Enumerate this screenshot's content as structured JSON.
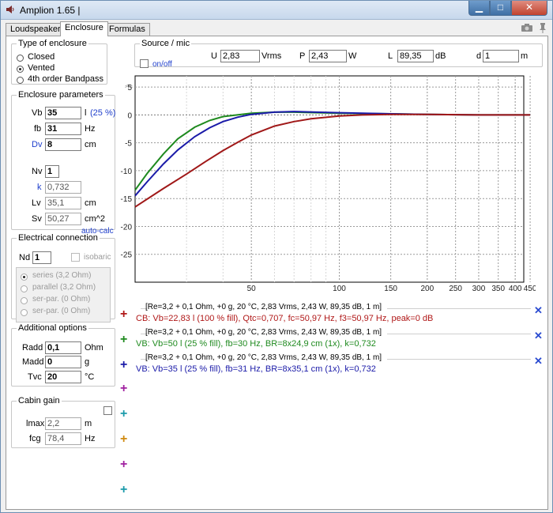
{
  "window": {
    "title": "Amplion 1.65 |",
    "minimize": "▁",
    "maximize": "□",
    "close": "✕"
  },
  "tabs": [
    {
      "label": "Loudspeaker"
    },
    {
      "label": "Enclosure"
    },
    {
      "label": "Formulas"
    }
  ],
  "enclosure_type": {
    "legend": "Type of enclosure",
    "options": [
      {
        "label": "Closed"
      },
      {
        "label": "Vented"
      },
      {
        "label": "4th order Bandpass"
      }
    ],
    "selected": "Vented"
  },
  "enclosure_params": {
    "legend": "Enclosure parameters",
    "vb": {
      "label": "Vb",
      "value": "35",
      "unit": "l",
      "note": "(25 %)"
    },
    "fb": {
      "label": "fb",
      "value": "31",
      "unit": "Hz"
    },
    "dv": {
      "label": "Dv",
      "value": "8",
      "unit": "cm"
    },
    "nv": {
      "label": "Nv",
      "value": "1"
    },
    "k": {
      "label": "k",
      "value": "0,732"
    },
    "lv": {
      "label": "Lv",
      "value": "35,1",
      "unit": "cm"
    },
    "sv": {
      "label": "Sv",
      "value": "50,27",
      "unit": "cm^2"
    },
    "auto_calc": "auto-calc"
  },
  "electrical": {
    "legend": "Electrical connection",
    "nd": {
      "label": "Nd",
      "value": "1"
    },
    "isobaric": "isobaric",
    "modes": [
      {
        "label": "series (3,2 Ohm)"
      },
      {
        "label": "parallel (3,2 Ohm)"
      },
      {
        "label": "ser-par. (0 Ohm)"
      },
      {
        "label": "ser-par. (0 Ohm)"
      }
    ],
    "selected": "series (3,2 Ohm)"
  },
  "additional": {
    "legend": "Additional options",
    "radd": {
      "label": "Radd",
      "value": "0,1",
      "unit": "Ohm"
    },
    "madd": {
      "label": "Madd",
      "value": "0",
      "unit": "g"
    },
    "tvc": {
      "label": "Tvc",
      "value": "20",
      "unit": "°C"
    }
  },
  "cabin": {
    "legend": "Cabin gain",
    "lmax": {
      "label": "lmax",
      "value": "2,2",
      "unit": "m"
    },
    "fcg": {
      "label": "fcg",
      "value": "78,4",
      "unit": "Hz"
    }
  },
  "source": {
    "legend": "Source / mic",
    "onoff": "on/off",
    "u": {
      "label": "U",
      "value": "2,83",
      "unit": "Vrms"
    },
    "p": {
      "label": "P",
      "value": "2,43",
      "unit": "W"
    },
    "l": {
      "label": "L",
      "value": "89,35",
      "unit": "dB"
    },
    "d": {
      "label": "d",
      "value": "1",
      "unit": "m"
    }
  },
  "chart_data": {
    "type": "line",
    "xscale": "log",
    "xlim": [
      20,
      500
    ],
    "ylim": [
      -30,
      7
    ],
    "x_ticks": [
      "50",
      "100",
      "150",
      "200",
      "250",
      "300",
      "350",
      "400",
      "450"
    ],
    "y_ticks": [
      "5",
      "0",
      "-5",
      "-10",
      "-15",
      "-20",
      "-25"
    ],
    "grid": true,
    "series": [
      {
        "color": "#1f8a1f",
        "x": [
          20,
          22,
          25,
          28,
          32,
          36,
          40,
          50,
          60,
          70,
          100,
          150,
          200,
          300,
          450
        ],
        "y": [
          -13.5,
          -10.5,
          -7.0,
          -4.3,
          -2.2,
          -1.0,
          -0.3,
          0.3,
          0.5,
          0.5,
          0.3,
          0.2,
          0.1,
          0.0,
          0.0
        ]
      },
      {
        "color": "#1a1aa8",
        "x": [
          20,
          22,
          25,
          28,
          32,
          36,
          40,
          45,
          50,
          60,
          70,
          100,
          150,
          200,
          300,
          450
        ],
        "y": [
          -14.5,
          -12.0,
          -8.8,
          -6.3,
          -3.9,
          -2.3,
          -1.2,
          -0.4,
          0.1,
          0.5,
          0.6,
          0.4,
          0.2,
          0.1,
          0.0,
          0.0
        ]
      },
      {
        "color": "#a01818",
        "x": [
          20,
          25,
          30,
          35,
          40,
          45,
          50,
          60,
          70,
          80,
          100,
          120,
          150,
          200,
          300,
          450
        ],
        "y": [
          -16.5,
          -13.2,
          -10.6,
          -8.3,
          -6.4,
          -4.9,
          -3.6,
          -2.0,
          -1.2,
          -0.7,
          -0.2,
          0.0,
          0.1,
          0.1,
          0.0,
          0.0
        ]
      }
    ]
  },
  "entries": [
    {
      "params": "[Re=3,2 + 0,1 Ohm, +0 g, 20 °C, 2,83 Vrms, 2,43 W, 89,35 dB, 1 m]",
      "desc": "CB: Vb=22,83 l (100 % fill), Qtc=0,707, fc=50,97 Hz, f3=50,97 Hz, peak=0 dB",
      "color": "#b01818"
    },
    {
      "params": "[Re=3,2 + 0,1 Ohm, +0 g, 20 °C, 2,83 Vrms, 2,43 W, 89,35 dB, 1 m]",
      "desc": "VB: Vb=50 l (25 % fill), fb=30 Hz, BR=8x24,9 cm (1x), k=0,732",
      "color": "#1f8a1f"
    },
    {
      "params": "[Re=3,2 + 0,1 Ohm, +0 g, 20 °C, 2,83 Vrms, 2,43 W, 89,35 dB, 1 m]",
      "desc": "VB: Vb=35 l (25 % fill), fb=31 Hz, BR=8x35,1 cm (1x), k=0,732",
      "color": "#1a1aa8"
    }
  ],
  "slot_colors": [
    "#b01818",
    "#1f8a1f",
    "#1a1aa8",
    "#a020a0",
    "#1a9aaa",
    "#d08a10",
    "#a020a0",
    "#1a9aaa"
  ]
}
